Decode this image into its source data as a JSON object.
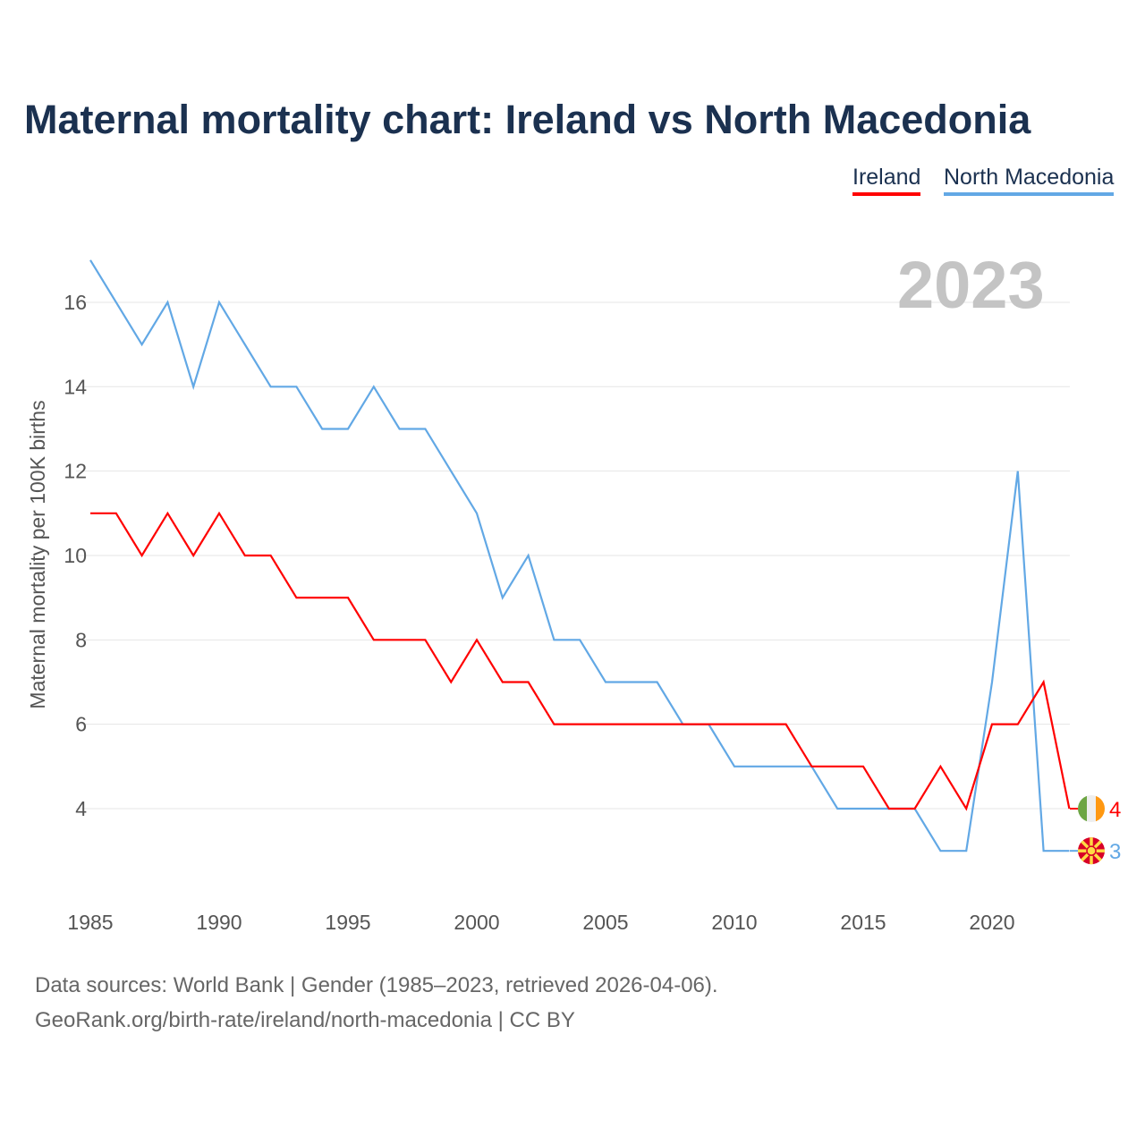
{
  "chart_data": {
    "type": "line",
    "title": "Maternal mortality chart: Ireland vs North Macedonia",
    "xlabel": "",
    "ylabel": "Maternal mortality per 100K births",
    "x": [
      1985,
      1986,
      1987,
      1988,
      1989,
      1990,
      1991,
      1992,
      1993,
      1994,
      1995,
      1996,
      1997,
      1998,
      1999,
      2000,
      2001,
      2002,
      2003,
      2004,
      2005,
      2006,
      2007,
      2008,
      2009,
      2010,
      2011,
      2012,
      2013,
      2014,
      2015,
      2016,
      2017,
      2018,
      2019,
      2020,
      2021,
      2022,
      2023
    ],
    "series": [
      {
        "name": "Ireland",
        "color": "#ff0000",
        "values": [
          11,
          11,
          10,
          11,
          10,
          11,
          10,
          10,
          9,
          9,
          9,
          8,
          8,
          8,
          7,
          8,
          7,
          7,
          6,
          6,
          6,
          6,
          6,
          6,
          6,
          6,
          6,
          6,
          5,
          5,
          5,
          4,
          4,
          5,
          4,
          6,
          6,
          7,
          4
        ]
      },
      {
        "name": "North Macedonia",
        "color": "#62a8e5",
        "values": [
          17,
          16,
          15,
          16,
          14,
          16,
          15,
          14,
          14,
          13,
          13,
          14,
          13,
          13,
          12,
          11,
          9,
          10,
          8,
          8,
          7,
          7,
          7,
          6,
          6,
          5,
          5,
          5,
          5,
          4,
          4,
          4,
          4,
          3,
          3,
          7,
          12,
          3,
          3
        ]
      }
    ],
    "xticks": [
      "1985",
      "1990",
      "1995",
      "2000",
      "2005",
      "2010",
      "2015",
      "2020"
    ],
    "yticks": [
      "4",
      "6",
      "8",
      "10",
      "12",
      "14",
      "16"
    ],
    "xlim": [
      1985,
      2023
    ],
    "ylim": [
      2,
      17
    ],
    "grid": true,
    "legend": "top-right",
    "year_label": "2023",
    "end_labels": [
      "4",
      "3"
    ]
  },
  "footer": {
    "line1": "Data sources: World Bank | Gender (1985–2023, retrieved 2026-04-06).",
    "line2": "GeoRank.org/birth-rate/ireland/north-macedonia | CC BY"
  }
}
